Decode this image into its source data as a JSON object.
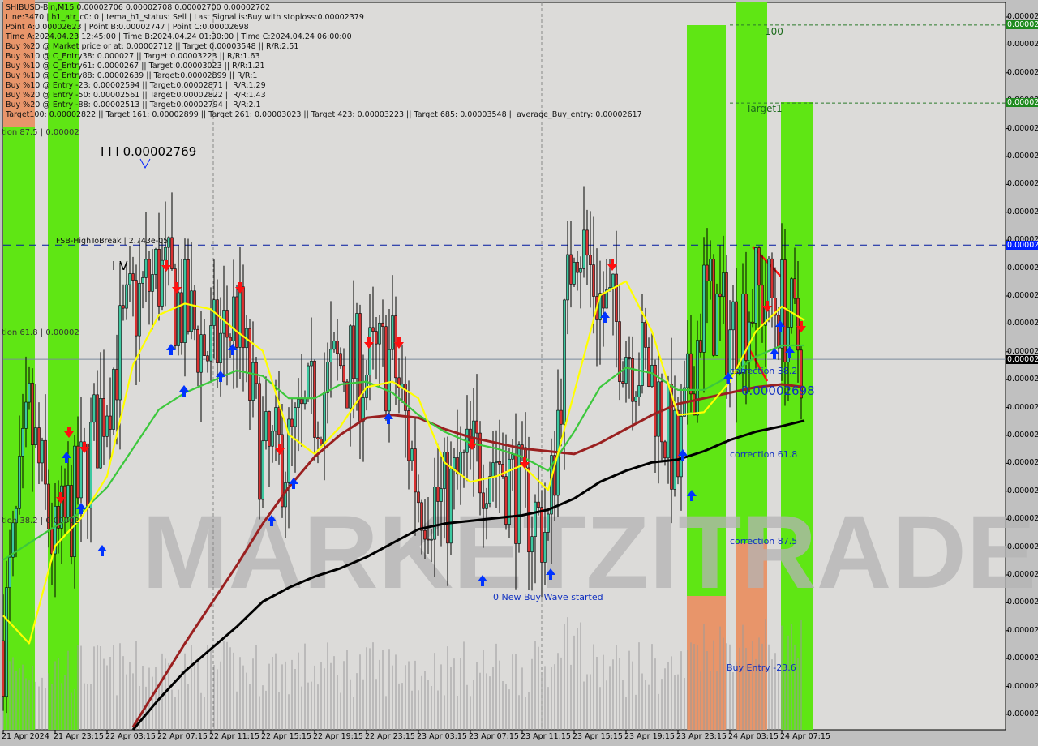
{
  "header": {
    "symbol_line": "SHIBUSD-Bin,M15  0.00002706 0.00002708 0.00002700 0.00002702",
    "lines": [
      "Line:3470 | h1_atr_c0: 0 | tema_h1_status: Sell | Last Signal is:Buy with stoploss:0.00002379",
      "Point A:0.00002623 | Point B:0.00002747 | Point C:0.00002698",
      "Time A:2024.04.23 12:45:00 | Time B:2024.04.24 01:30:00 | Time C:2024.04.24 06:00:00",
      "Buy %20 @ Market price or at: 0.00002712 || Target:0.00003548 || R/R:2.51",
      "Buy %10 @ C_Entry38: 0.000027 || Target:0.00003223 || R/R:1.63",
      "Buy %10 @ C_Entry61: 0.0000267 || Target:0.00003023 || R/R:1.21",
      "Buy %10 @ C_Entry88: 0.00002639 || Target:0.00002899 || R/R:1",
      "Buy %10 @ Entry -23: 0.00002594 || Target:0.00002871 || R/R:1.29",
      "Buy %20 @ Entry -50: 0.00002561 || Target:0.00002822 || R/R:1.43",
      "Buy %20 @ Entry -88: 0.00002513 || Target:0.00002794 || R/R:2.1",
      "Target100: 0.00002822 || Target 161: 0.00002899 || Target 261: 0.00003023 || Target 423: 0.00003223 || Target 685: 0.00003548 || average_Buy_entry: 0.00002617"
    ]
  },
  "annotations": {
    "wave3": "I I I 0.00002769",
    "wave4": "I V",
    "fsb": "FSB-HighToBreak | 2.743e-05",
    "left_875": "tion 87.5 | 0.00002",
    "left_618": "tion 61.8 | 0.00002",
    "left_382": "tion 38.2 | 0.00002",
    "level_100": "100",
    "target1": "Target1",
    "corr_382": "correction 38.2",
    "point_c": "0.00002698",
    "corr_618": "correction 61.8",
    "corr_875": "correction 87.5",
    "buy_entry": "Buy Entry -23.6",
    "new_wave": "0 New Buy Wave started",
    "watermark": "MARKETZITRADE"
  },
  "price_axis": {
    "labels": [
      "0.00002",
      "0.00002",
      "0.00002",
      "0.00002",
      "0.00002",
      "0.00002",
      "0.00002",
      "0.00002",
      "0.00002",
      "0.00002",
      "0.00002",
      "0.00002",
      "0.00002",
      "0.00002",
      "0.00002",
      "0.00002",
      "0.00002",
      "0.00002",
      "0.00002",
      "0.00002",
      "0.00002",
      "0.00002",
      "0.00002",
      "0.00002",
      "0.00002",
      "0.00002"
    ],
    "marker_100": "0.00002",
    "marker_target1": "0.00002",
    "marker_fsb": "0.00002",
    "marker_current": "0.00002"
  },
  "colors": {
    "bull": "#3cc8a0",
    "bear": "#d83030",
    "green_zone": "#5fe614",
    "orange_zone": "#e8956a",
    "ma_black": "#000000",
    "ma_brown": "#9a2020",
    "ma_green": "#3cc83c",
    "ma_yellow": "#ffff00",
    "buy_arrow": "#0033ff",
    "sell_arrow": "#ff1010"
  },
  "chart_data": {
    "type": "candlestick",
    "symbol": "SHIBUSD-Bin",
    "timeframe": "M15",
    "ylim": [
      2.569e-05,
      2.831e-05
    ],
    "x_tick_labels": [
      "21 Apr 2024",
      "21 Apr 23:15",
      "22 Apr 03:15",
      "22 Apr 07:15",
      "22 Apr 11:15",
      "22 Apr 15:15",
      "22 Apr 19:15",
      "22 Apr 23:15",
      "23 Apr 03:15",
      "23 Apr 07:15",
      "23 Apr 11:15",
      "23 Apr 15:15",
      "23 Apr 19:15",
      "23 Apr 23:15",
      "24 Apr 03:15",
      "24 Apr 07:15"
    ],
    "times": [
      "2024-04-21 19:15",
      "2024-04-21 21:15",
      "2024-04-21 23:15",
      "2024-04-22 01:15",
      "2024-04-22 03:15",
      "2024-04-22 05:15",
      "2024-04-22 07:15",
      "2024-04-22 09:15",
      "2024-04-22 11:15",
      "2024-04-22 13:15",
      "2024-04-22 15:15",
      "2024-04-22 17:15",
      "2024-04-22 19:15",
      "2024-04-22 21:15",
      "2024-04-22 23:15",
      "2024-04-23 01:15",
      "2024-04-23 03:15",
      "2024-04-23 05:15",
      "2024-04-23 07:15",
      "2024-04-23 09:15",
      "2024-04-23 11:15",
      "2024-04-23 13:15",
      "2024-04-23 15:15",
      "2024-04-23 17:15",
      "2024-04-23 19:15",
      "2024-04-23 21:15",
      "2024-04-23 23:15",
      "2024-04-24 01:15",
      "2024-04-24 03:15",
      "2024-04-24 05:15",
      "2024-04-24 07:15",
      "2024-04-24 09:00"
    ],
    "close": [
      2.601e-05,
      2.68e-05,
      2.633e-05,
      2.657e-05,
      2.691e-05,
      2.721e-05,
      2.733e-05,
      2.718e-05,
      2.703e-05,
      2.718e-05,
      2.665e-05,
      2.668e-05,
      2.686e-05,
      2.7e-05,
      2.698e-05,
      2.703e-05,
      2.655e-05,
      2.65e-05,
      2.665e-05,
      2.668e-05,
      2.651e-05,
      2.64e-05,
      2.752e-05,
      2.723e-05,
      2.708e-05,
      2.695e-05,
      2.662e-05,
      2.725e-05,
      2.712e-05,
      2.725e-05,
      2.721e-05,
      2.702e-05
    ],
    "indicators": [
      {
        "color": "black",
        "values": [
          null,
          null,
          null,
          null,
          null,
          2.569e-05,
          2.58e-05,
          2.59e-05,
          2.598e-05,
          2.606e-05,
          2.615e-05,
          2.62e-05,
          2.624e-05,
          2.627e-05,
          2.631e-05,
          2.636e-05,
          2.641e-05,
          2.643e-05,
          2.644e-05,
          2.645e-05,
          2.646e-05,
          2.648e-05,
          2.652e-05,
          2.658e-05,
          2.662e-05,
          2.665e-05,
          2.666e-05,
          2.669e-05,
          2.673e-05,
          2.676e-05,
          2.678e-05,
          2.68e-05
        ]
      },
      {
        "color": "brown",
        "values": [
          null,
          null,
          null,
          null,
          null,
          2.57e-05,
          2.585e-05,
          2.6e-05,
          2.614e-05,
          2.628e-05,
          2.643e-05,
          2.656e-05,
          2.667e-05,
          2.675e-05,
          2.681e-05,
          2.682e-05,
          2.681e-05,
          2.677e-05,
          2.674e-05,
          2.672e-05,
          2.67e-05,
          2.669e-05,
          2.668e-05,
          2.672e-05,
          2.677e-05,
          2.682e-05,
          2.686e-05,
          2.688e-05,
          2.69e-05,
          2.692e-05,
          2.693e-05,
          2.692e-05
        ]
      },
      {
        "color": "green",
        "values": [
          2.63e-05,
          2.636e-05,
          2.642e-05,
          2.647e-05,
          2.656e-05,
          2.67e-05,
          2.684e-05,
          2.69e-05,
          2.694e-05,
          2.698e-05,
          2.696e-05,
          2.688e-05,
          2.688e-05,
          2.693e-05,
          2.694e-05,
          2.69e-05,
          2.682e-05,
          2.676e-05,
          2.672e-05,
          2.67e-05,
          2.667e-05,
          2.662e-05,
          2.676e-05,
          2.692e-05,
          2.699e-05,
          2.697e-05,
          2.691e-05,
          2.691e-05,
          2.696e-05,
          2.703e-05,
          2.707e-05,
          2.707e-05
        ]
      },
      {
        "color": "yellow",
        "values": [
          2.61e-05,
          2.6e-05,
          2.635e-05,
          2.645e-05,
          2.66e-05,
          2.7e-05,
          2.718e-05,
          2.722e-05,
          2.72e-05,
          2.712e-05,
          2.705e-05,
          2.675e-05,
          2.668e-05,
          2.678e-05,
          2.692e-05,
          2.694e-05,
          2.688e-05,
          2.665e-05,
          2.658e-05,
          2.66e-05,
          2.664e-05,
          2.655e-05,
          2.69e-05,
          2.725e-05,
          2.73e-05,
          2.712e-05,
          2.682e-05,
          2.683e-05,
          2.694e-05,
          2.712e-05,
          2.721e-05,
          2.716e-05
        ]
      }
    ],
    "levels": [
      {
        "label": "100",
        "price": 2.822e-05,
        "style": "dashed-green"
      },
      {
        "label": "Target1",
        "price": 2.794e-05,
        "style": "dashed-green"
      },
      {
        "label": "FSB-HighToBreak",
        "price": 2.743e-05,
        "style": "dashed-blue"
      },
      {
        "label": "current",
        "price": 2.702e-05,
        "style": "solid-gray"
      }
    ]
  }
}
